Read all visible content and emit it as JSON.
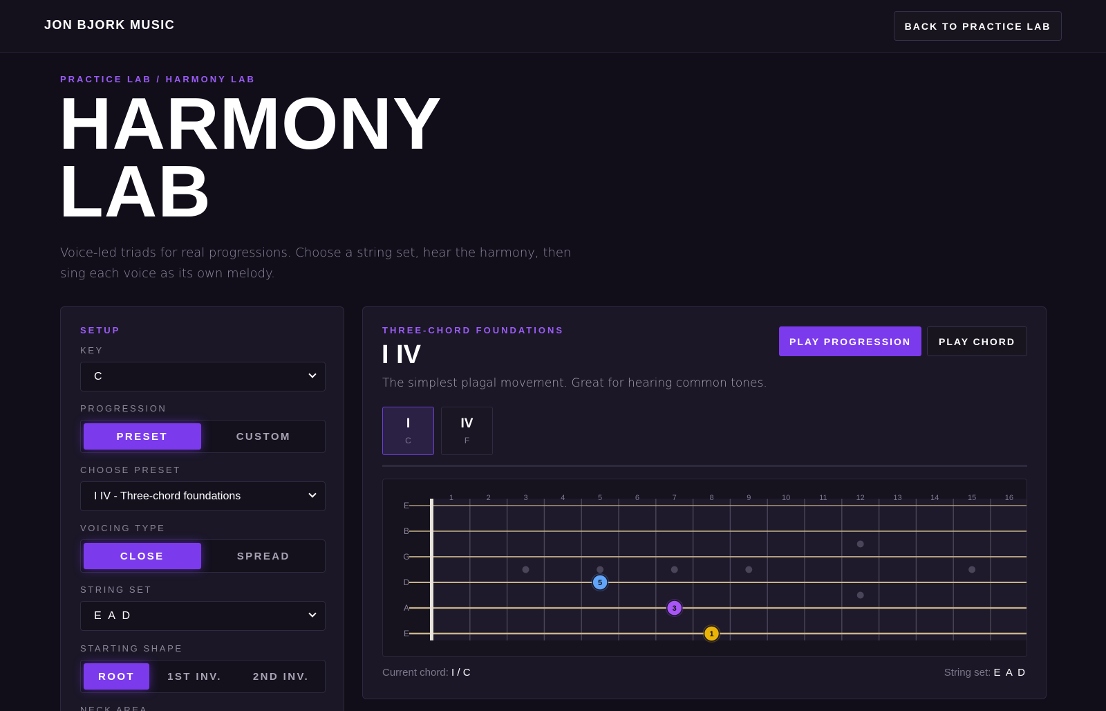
{
  "header": {
    "brand": "JON BJORK MUSIC",
    "back_label": "BACK TO PRACTICE LAB"
  },
  "hero": {
    "breadcrumb": "PRACTICE LAB / HARMONY LAB",
    "title_line1": "HARMONY",
    "title_line2": "LAB",
    "subtitle": "Voice-led triads for real progressions. Choose a string set, hear the harmony, then sing each voice as its own melody."
  },
  "setup": {
    "heading": "SETUP",
    "key_label": "KEY",
    "key_value": "C",
    "progression_label": "PROGRESSION",
    "progression_options": [
      "PRESET",
      "CUSTOM"
    ],
    "choose_preset_label": "CHOOSE PRESET",
    "preset_value": "I IV - Three-chord foundations",
    "voicing_label": "VOICING TYPE",
    "voicing_options": [
      "CLOSE",
      "SPREAD"
    ],
    "string_set_label": "STRING SET",
    "string_set_value": "E A D",
    "starting_shape_label": "STARTING SHAPE",
    "shape_options": [
      "ROOT",
      "1ST INV.",
      "2ND INV."
    ],
    "neck_area_label": "NECK AREA"
  },
  "main": {
    "category": "THREE-CHORD FOUNDATIONS",
    "title": "I IV",
    "description": "The simplest plagal movement. Great for hearing common tones.",
    "play_progression": "PLAY PROGRESSION",
    "play_chord": "PLAY CHORD",
    "chords": [
      {
        "numeral": "I",
        "name": "C"
      },
      {
        "numeral": "IV",
        "name": "F"
      }
    ],
    "current_chord_label": "Current chord:",
    "current_chord_value": "I / C",
    "string_set_label": "String set:",
    "string_set_value": "E A D"
  },
  "fretboard": {
    "fret_numbers": [
      "1",
      "2",
      "3",
      "4",
      "5",
      "6",
      "7",
      "8",
      "9",
      "10",
      "11",
      "12",
      "13",
      "14",
      "15",
      "16"
    ],
    "strings": [
      "E",
      "B",
      "G",
      "D",
      "A",
      "E"
    ],
    "inlay_frets": [
      3,
      5,
      7,
      9,
      12,
      15
    ],
    "notes": [
      {
        "string": 3,
        "fret": 5,
        "label": "5",
        "color": "#60a5fa"
      },
      {
        "string": 4,
        "fret": 7,
        "label": "3",
        "color": "#a855f7"
      },
      {
        "string": 5,
        "fret": 8,
        "label": "1",
        "color": "#eab308"
      }
    ]
  },
  "colors": {
    "accent": "#7c3aed",
    "accent_text": "#9b5cf6",
    "background": "#110e1a"
  }
}
